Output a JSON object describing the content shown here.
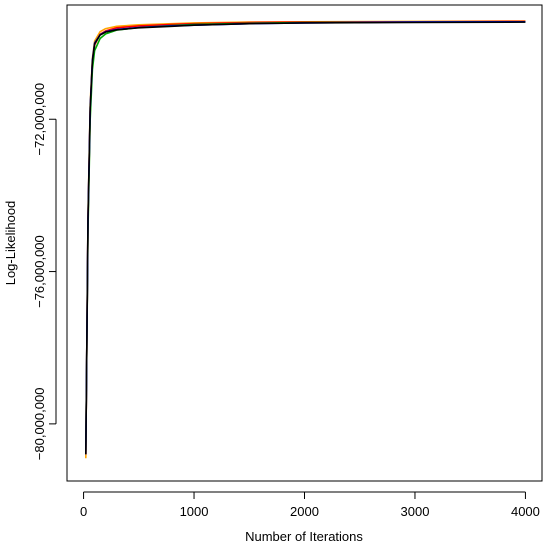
{
  "chart_data": {
    "type": "line",
    "title": "",
    "xlabel": "Number of Iterations",
    "ylabel": "Log-Likelihood",
    "xlim": [
      -150,
      4150
    ],
    "ylim": [
      -81500000,
      -69000000
    ],
    "x_ticks": [
      0,
      1000,
      2000,
      3000,
      4000
    ],
    "x_tick_labels": [
      "0",
      "1000",
      "2000",
      "3000",
      "4000"
    ],
    "y_ticks": [
      -80000000,
      -76000000,
      -72000000
    ],
    "y_tick_labels": [
      "−80,000,000",
      "−76,000,000",
      "−72,000,000"
    ],
    "grid": false,
    "legend": "none",
    "series": [
      {
        "color": "#FFA500",
        "x": [
          20,
          40,
          60,
          80,
          100,
          150,
          200,
          300,
          500,
          800,
          1000,
          1500,
          2000,
          3000,
          4000
        ],
        "y": [
          -80900000,
          -74500000,
          -71600000,
          -70400000,
          -69950000,
          -69700000,
          -69620000,
          -69560000,
          -69520000,
          -69490000,
          -69470000,
          -69450000,
          -69440000,
          -69430000,
          -69420000
        ]
      },
      {
        "color": "#FF0000",
        "x": [
          20,
          40,
          60,
          80,
          100,
          150,
          200,
          300,
          500,
          800,
          1000,
          1500,
          2000,
          3000,
          4000
        ],
        "y": [
          -80800000,
          -74700000,
          -71800000,
          -70500000,
          -70050000,
          -69770000,
          -69680000,
          -69600000,
          -69550000,
          -69510000,
          -69490000,
          -69460000,
          -69450000,
          -69440000,
          -69430000
        ]
      },
      {
        "color": "#00AA00",
        "x": [
          20,
          40,
          60,
          80,
          100,
          150,
          200,
          300,
          500,
          800,
          1000,
          1500,
          2000,
          3000,
          4000
        ],
        "y": [
          -80700000,
          -74900000,
          -72000000,
          -70700000,
          -70200000,
          -69880000,
          -69760000,
          -69660000,
          -69590000,
          -69540000,
          -69510000,
          -69480000,
          -69460000,
          -69450000,
          -69440000
        ]
      },
      {
        "color": "#0000FF",
        "x": [
          20,
          40,
          60,
          80,
          100,
          150,
          200,
          300,
          500,
          800,
          1000,
          1500,
          2000,
          3000,
          4000
        ],
        "y": [
          -80800000,
          -74600000,
          -71700000,
          -70450000,
          -70000000,
          -69780000,
          -69700000,
          -69640000,
          -69590000,
          -69550000,
          -69530000,
          -69490000,
          -69470000,
          -69450000,
          -69440000
        ]
      },
      {
        "color": "#000000",
        "x": [
          20,
          40,
          60,
          80,
          100,
          150,
          200,
          300,
          500,
          800,
          1000,
          1500,
          2000,
          3000,
          4000
        ],
        "y": [
          -80800000,
          -74600000,
          -71700000,
          -70480000,
          -70020000,
          -69790000,
          -69710000,
          -69650000,
          -69600000,
          -69560000,
          -69530000,
          -69490000,
          -69470000,
          -69460000,
          -69450000
        ]
      }
    ]
  }
}
